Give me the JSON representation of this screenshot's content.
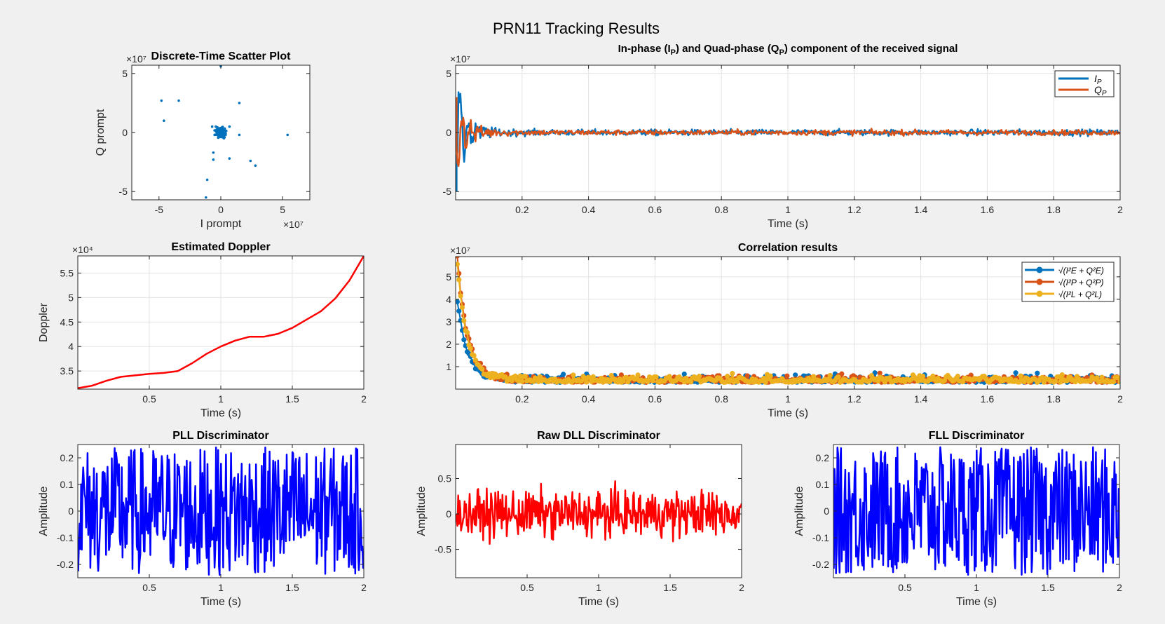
{
  "figure": {
    "title": "PRN11 Tracking Results",
    "background": "#f0f0f0"
  },
  "colors": {
    "blue": "#0072bd",
    "orange": "#d95319",
    "yellow": "#edb120",
    "red": "#ff0000",
    "pure_blue": "#0000ff",
    "grid": "#e3e3e3",
    "axis": "#262626"
  },
  "chart_data": [
    {
      "id": "scatter",
      "type": "scatter",
      "title": "Discrete-Time Scatter Plot",
      "xlabel": "I prompt",
      "ylabel": "Q prompt",
      "xlim": [
        -7.2,
        7.2
      ],
      "ylim": [
        -5.7,
        5.7
      ],
      "xticks": [
        -5,
        0,
        5
      ],
      "xtick_labels": [
        "-5",
        "0",
        "5"
      ],
      "yticks": [
        -5,
        0,
        5
      ],
      "ytick_labels": [
        "-5",
        "0",
        "5"
      ],
      "x_exponent": "×10⁷",
      "y_exponent": "×10⁷",
      "grid": false,
      "outliers": [
        [
          -4.8,
          2.7
        ],
        [
          -4.6,
          1.0
        ],
        [
          -3.4,
          2.7
        ],
        [
          0.0,
          5.6
        ],
        [
          1.5,
          2.5
        ],
        [
          1.5,
          -0.2
        ],
        [
          5.4,
          -0.2
        ],
        [
          -0.6,
          -1.7
        ],
        [
          -0.6,
          -2.3
        ],
        [
          0.7,
          -2.2
        ],
        [
          2.4,
          -2.4
        ],
        [
          2.8,
          -2.8
        ],
        [
          -1.1,
          -4.0
        ],
        [
          -1.2,
          -5.5
        ],
        [
          -0.4,
          0.5
        ],
        [
          0.7,
          0.5
        ],
        [
          -0.7,
          0.5
        ]
      ],
      "cluster": {
        "center": [
          0,
          0
        ],
        "spread": 0.38,
        "count": 160
      }
    },
    {
      "id": "iq",
      "type": "line",
      "title": "In-phase (I_P) and Quad-phase (Q_P) component of the received signal",
      "title_html": [
        "In-phase (I",
        "P",
        ") and Quad-phase (Q",
        "P",
        ") component of the received signal"
      ],
      "xlabel": "Time (s)",
      "xlim": [
        0,
        2
      ],
      "ylim": [
        -5.7,
        5.7
      ],
      "xticks": [
        0.2,
        0.4,
        0.6,
        0.8,
        1,
        1.2,
        1.4,
        1.6,
        1.8,
        2
      ],
      "xtick_labels": [
        "0.2",
        "0.4",
        "0.6",
        "0.8",
        "1",
        "1.2",
        "1.4",
        "1.6",
        "1.8",
        "2"
      ],
      "yticks": [
        -5,
        0,
        5
      ],
      "ytick_labels": [
        "-5",
        "0",
        "5"
      ],
      "y_exponent": "×10⁷",
      "grid": true,
      "legend_position": "top-right",
      "series": [
        {
          "name": "I_P",
          "legend_label": "I",
          "legend_sub": "P",
          "color": "#0072bd",
          "start_amplitude": -5.0,
          "decay": 0.025,
          "noise": 0.25
        },
        {
          "name": "Q_P",
          "legend_label": "Q",
          "legend_sub": "P",
          "color": "#d95319",
          "start_amplitude": 3.0,
          "decay": 0.03,
          "noise": 0.22
        }
      ]
    },
    {
      "id": "doppler",
      "type": "line",
      "title": "Estimated Doppler",
      "xlabel": "Time (s)",
      "ylabel": "Doppler",
      "xlim": [
        0,
        2
      ],
      "ylim": [
        3.13,
        5.85
      ],
      "xticks": [
        0.5,
        1,
        1.5,
        2
      ],
      "xtick_labels": [
        "0.5",
        "1",
        "1.5",
        "2"
      ],
      "yticks": [
        3.5,
        4,
        4.5,
        5,
        5.5
      ],
      "ytick_labels": [
        "3.5",
        "4",
        "4.5",
        "5",
        "5.5"
      ],
      "y_exponent": "×10⁴",
      "grid": true,
      "series": [
        {
          "name": "Doppler",
          "color": "#ff0000",
          "x": [
            0,
            0.1,
            0.2,
            0.3,
            0.4,
            0.5,
            0.6,
            0.7,
            0.8,
            0.9,
            1.0,
            1.1,
            1.2,
            1.3,
            1.4,
            1.5,
            1.6,
            1.7,
            1.8,
            1.9,
            2.0
          ],
          "y": [
            3.15,
            3.2,
            3.3,
            3.38,
            3.41,
            3.44,
            3.46,
            3.5,
            3.66,
            3.85,
            4.0,
            4.12,
            4.2,
            4.2,
            4.26,
            4.38,
            4.55,
            4.72,
            4.98,
            5.35,
            5.85
          ]
        }
      ]
    },
    {
      "id": "corr",
      "type": "line",
      "title": "Correlation results",
      "xlabel": "Time (s)",
      "xlim": [
        0,
        2
      ],
      "ylim": [
        0,
        5.9
      ],
      "xticks": [
        0.2,
        0.4,
        0.6,
        0.8,
        1,
        1.2,
        1.4,
        1.6,
        1.8,
        2
      ],
      "xtick_labels": [
        "0.2",
        "0.4",
        "0.6",
        "0.8",
        "1",
        "1.2",
        "1.4",
        "1.6",
        "1.8",
        "2"
      ],
      "yticks": [
        1,
        2,
        3,
        4,
        5
      ],
      "ytick_labels": [
        "1",
        "2",
        "3",
        "4",
        "5"
      ],
      "y_exponent": "×10⁷",
      "grid": true,
      "legend_position": "top-right",
      "series": [
        {
          "name": "sqrt(I_E^2+Q_E^2)",
          "legend_label": "√(I²E + Q²E)",
          "color": "#0072bd",
          "start": 3.8,
          "base": 0.3,
          "noise": 0.3
        },
        {
          "name": "sqrt(I_P^2+Q_P^2)",
          "legend_label": "√(I²P + Q²P)",
          "color": "#d95319",
          "start": 5.8,
          "base": 0.3,
          "noise": 0.3
        },
        {
          "name": "sqrt(I_L^2+Q_L^2)",
          "legend_label": "√(I²L + Q²L)",
          "color": "#edb120",
          "start": 5.5,
          "base": 0.3,
          "noise": 0.3
        }
      ]
    },
    {
      "id": "pll",
      "type": "line",
      "title": "PLL Discriminator",
      "xlabel": "Time (s)",
      "ylabel": "Amplitude",
      "xlim": [
        0,
        2
      ],
      "ylim": [
        -0.25,
        0.25
      ],
      "xticks": [
        0.5,
        1,
        1.5,
        2
      ],
      "xtick_labels": [
        "0.5",
        "1",
        "1.5",
        "2"
      ],
      "yticks": [
        -0.2,
        -0.1,
        0,
        0.1,
        0.2
      ],
      "ytick_labels": [
        "-0.2",
        "-0.1",
        "0",
        "0.1",
        "0.2"
      ],
      "grid": false,
      "series": [
        {
          "name": "PLL",
          "color": "#0000ff",
          "noise": 0.24,
          "samples": 400
        }
      ]
    },
    {
      "id": "dll",
      "type": "line",
      "title": "Raw DLL Discriminator",
      "xlabel": "Time (s)",
      "ylabel": "Amplitude",
      "xlim": [
        0,
        2
      ],
      "ylim": [
        -0.9,
        0.98
      ],
      "xticks": [
        0.5,
        1,
        1.5,
        2
      ],
      "xtick_labels": [
        "0.5",
        "1",
        "1.5",
        "2"
      ],
      "yticks": [
        -0.5,
        0,
        0.5
      ],
      "ytick_labels": [
        "-0.5",
        "0",
        "0.5"
      ],
      "grid": false,
      "series": [
        {
          "name": "DLL",
          "color": "#ff0000",
          "noise": 0.32,
          "samples": 400
        }
      ]
    },
    {
      "id": "fll",
      "type": "line",
      "title": "FLL Discriminator",
      "xlabel": "Time (s)",
      "ylabel": "Amplitude",
      "xlim": [
        0,
        2
      ],
      "ylim": [
        -0.25,
        0.25
      ],
      "xticks": [
        0.5,
        1,
        1.5,
        2
      ],
      "xtick_labels": [
        "0.5",
        "1",
        "1.5",
        "2"
      ],
      "yticks": [
        -0.2,
        -0.1,
        0,
        0.1,
        0.2
      ],
      "ytick_labels": [
        "-0.2",
        "-0.1",
        "0",
        "0.1",
        "0.2"
      ],
      "grid": false,
      "series": [
        {
          "name": "FLL",
          "color": "#0000ff",
          "noise": 0.24,
          "samples": 400
        }
      ]
    }
  ]
}
